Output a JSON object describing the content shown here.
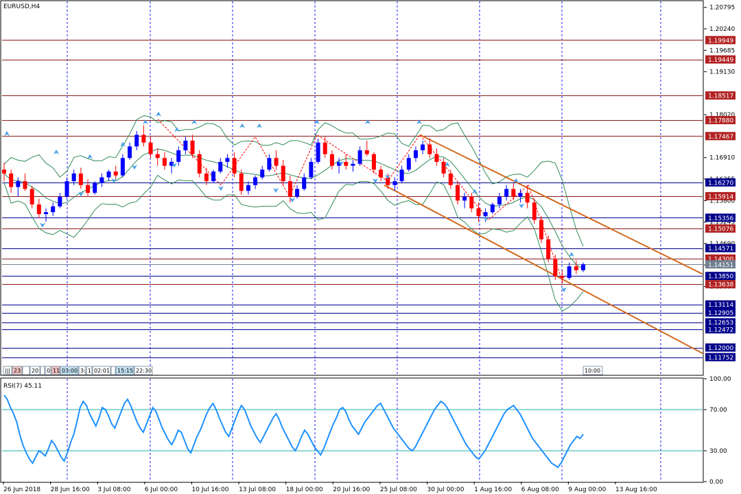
{
  "window": {
    "symbol_label": "EURUSD,H4"
  },
  "price_axis": {
    "ticks": [
      "1.20795",
      "1.20240",
      "1.19685",
      "1.19130",
      "1.18020",
      "1.16910",
      "1.16355",
      "1.15800",
      "1.15245",
      "1.14690",
      "1.14135",
      "1.13580"
    ],
    "range": [
      1.113,
      1.2095
    ]
  },
  "price_levels": [
    {
      "label": "1.19949",
      "value": 1.19949,
      "color": "#8b1a1a",
      "bg": "#b22222"
    },
    {
      "label": "1.19449",
      "value": 1.19449,
      "color": "#8b1a1a",
      "bg": "#b22222"
    },
    {
      "label": "1.18517",
      "value": 1.18517,
      "color": "#8b1a1a",
      "bg": "#b22222"
    },
    {
      "label": "1.17880",
      "value": 1.1788,
      "color": "#8b1a1a",
      "bg": "#b22222"
    },
    {
      "label": "1.17467",
      "value": 1.17467,
      "color": "#8b1a1a",
      "bg": "#b22222"
    },
    {
      "label": "1.16270",
      "value": 1.1627,
      "color": "#00008b",
      "bg": "#00008b"
    },
    {
      "label": "1.15914",
      "value": 1.15914,
      "color": "#8b1a1a",
      "bg": "#b22222"
    },
    {
      "label": "1.15356",
      "value": 1.15356,
      "color": "#00008b",
      "bg": "#00008b"
    },
    {
      "label": "1.15076",
      "value": 1.15076,
      "color": "#8b1a1a",
      "bg": "#b22222"
    },
    {
      "label": "1.14571",
      "value": 1.14571,
      "color": "#00008b",
      "bg": "#00008b"
    },
    {
      "label": "1.14300",
      "value": 1.143,
      "color": "#8b1a1a",
      "bg": "#b22222"
    },
    {
      "label": "1.14151",
      "value": 1.14151,
      "color": "#708090",
      "bg": "#708090"
    },
    {
      "label": "1.13850",
      "value": 1.1385,
      "color": "#00008b",
      "bg": "#00008b"
    },
    {
      "label": "1.13638",
      "value": 1.13638,
      "color": "#8b1a1a",
      "bg": "#b22222"
    },
    {
      "label": "1.13114",
      "value": 1.13114,
      "color": "#00008b",
      "bg": "#00008b"
    },
    {
      "label": "1.12905",
      "value": 1.12905,
      "color": "#00008b",
      "bg": "#00008b"
    },
    {
      "label": "1.12653",
      "value": 1.12653,
      "color": "#00008b",
      "bg": "#00008b"
    },
    {
      "label": "1.12472",
      "value": 1.12472,
      "color": "#00008b",
      "bg": "#00008b"
    },
    {
      "label": "1.12000",
      "value": 1.12,
      "color": "#00008b",
      "bg": "#00008b"
    },
    {
      "label": "1.11752",
      "value": 1.11752,
      "color": "#00008b",
      "bg": "#00008b"
    }
  ],
  "time_axis": {
    "labels": [
      "26 Jun 2018",
      "28 Jun 16:00",
      "3 Jul 08:00",
      "6 Jul 00:00",
      "10 Jul 16:00",
      "13 Jul 08:00",
      "18 Jul 00:00",
      "20 Jul 16:00",
      "25 Jul 08:00",
      "30 Jul 00:00",
      "1 Aug 16:00",
      "6 Aug 08:00",
      "9 Aug 00:00",
      "13 Aug 16:00"
    ]
  },
  "session_bar": {
    "items": [
      "|||",
      "23",
      "",
      "20",
      "",
      "0",
      "11",
      "03:00",
      "3:",
      "1",
      "02:01",
      "",
      "15:15",
      "22:30"
    ],
    "current_time": "10:00"
  },
  "rsi": {
    "label": "RSI(7) 45.11",
    "ticks": [
      "100.00",
      "70.00",
      "30.00",
      "0.00"
    ],
    "levels": [
      70,
      30
    ]
  },
  "chart_data": [
    {
      "type": "candlestick",
      "title": "EURUSD,H4",
      "ylim": [
        1.113,
        1.2095
      ],
      "ohlc": [
        [
          1.166,
          1.1678,
          1.163,
          1.165
        ],
        [
          1.165,
          1.166,
          1.16,
          1.1615
        ],
        [
          1.1615,
          1.164,
          1.159,
          1.163
        ],
        [
          1.163,
          1.165,
          1.1605,
          1.161
        ],
        [
          1.161,
          1.1618,
          1.156,
          1.157
        ],
        [
          1.157,
          1.1585,
          1.1535,
          1.1545
        ],
        [
          1.1545,
          1.156,
          1.1525,
          1.155
        ],
        [
          1.155,
          1.1575,
          1.154,
          1.1565
        ],
        [
          1.1565,
          1.16,
          1.156,
          1.159
        ],
        [
          1.159,
          1.164,
          1.1585,
          1.163
        ],
        [
          1.163,
          1.166,
          1.162,
          1.165
        ],
        [
          1.165,
          1.1665,
          1.161,
          1.162
        ],
        [
          1.162,
          1.1635,
          1.159,
          1.16
        ],
        [
          1.16,
          1.163,
          1.1595,
          1.1625
        ],
        [
          1.1625,
          1.165,
          1.1615,
          1.164
        ],
        [
          1.164,
          1.166,
          1.163,
          1.1655
        ],
        [
          1.1655,
          1.167,
          1.1635,
          1.1645
        ],
        [
          1.1645,
          1.17,
          1.164,
          1.169
        ],
        [
          1.169,
          1.173,
          1.1685,
          1.172
        ],
        [
          1.172,
          1.176,
          1.171,
          1.175
        ],
        [
          1.175,
          1.1775,
          1.172,
          1.173
        ],
        [
          1.173,
          1.1745,
          1.169,
          1.17
        ],
        [
          1.17,
          1.1715,
          1.167,
          1.169
        ],
        [
          1.169,
          1.1705,
          1.166,
          1.167
        ],
        [
          1.167,
          1.169,
          1.165,
          1.168
        ],
        [
          1.168,
          1.172,
          1.167,
          1.171
        ],
        [
          1.171,
          1.1745,
          1.17,
          1.1735
        ],
        [
          1.1735,
          1.175,
          1.169,
          1.17
        ],
        [
          1.17,
          1.171,
          1.164,
          1.165
        ],
        [
          1.165,
          1.1665,
          1.162,
          1.163
        ],
        [
          1.163,
          1.166,
          1.1625,
          1.1655
        ],
        [
          1.1655,
          1.169,
          1.165,
          1.168
        ],
        [
          1.168,
          1.17,
          1.1665,
          1.169
        ],
        [
          1.169,
          1.1705,
          1.164,
          1.165
        ],
        [
          1.165,
          1.166,
          1.1595,
          1.1605
        ],
        [
          1.1605,
          1.163,
          1.1595,
          1.162
        ],
        [
          1.162,
          1.1645,
          1.161,
          1.164
        ],
        [
          1.164,
          1.167,
          1.1635,
          1.166
        ],
        [
          1.166,
          1.17,
          1.1655,
          1.169
        ],
        [
          1.169,
          1.171,
          1.166,
          1.167
        ],
        [
          1.167,
          1.1685,
          1.162,
          1.163
        ],
        [
          1.163,
          1.1645,
          1.1575,
          1.159
        ],
        [
          1.159,
          1.162,
          1.1585,
          1.161
        ],
        [
          1.161,
          1.165,
          1.1605,
          1.164
        ],
        [
          1.164,
          1.169,
          1.1635,
          1.168
        ],
        [
          1.168,
          1.174,
          1.1675,
          1.173
        ],
        [
          1.173,
          1.1745,
          1.169,
          1.17
        ],
        [
          1.17,
          1.171,
          1.166,
          1.167
        ],
        [
          1.167,
          1.169,
          1.165,
          1.168
        ],
        [
          1.168,
          1.17,
          1.166,
          1.167
        ],
        [
          1.167,
          1.1685,
          1.1655,
          1.1675
        ],
        [
          1.1675,
          1.172,
          1.167,
          1.171
        ],
        [
          1.171,
          1.1735,
          1.1695,
          1.17
        ],
        [
          1.17,
          1.1705,
          1.165,
          1.166
        ],
        [
          1.166,
          1.167,
          1.163,
          1.164
        ],
        [
          1.164,
          1.165,
          1.161,
          1.162
        ],
        [
          1.162,
          1.164,
          1.1605,
          1.163
        ],
        [
          1.163,
          1.167,
          1.1625,
          1.166
        ],
        [
          1.166,
          1.17,
          1.1655,
          1.169
        ],
        [
          1.169,
          1.172,
          1.168,
          1.171
        ],
        [
          1.171,
          1.1735,
          1.17,
          1.1725
        ],
        [
          1.1725,
          1.174,
          1.169,
          1.17
        ],
        [
          1.17,
          1.1715,
          1.167,
          1.168
        ],
        [
          1.168,
          1.169,
          1.164,
          1.165
        ],
        [
          1.165,
          1.166,
          1.161,
          1.162
        ],
        [
          1.162,
          1.163,
          1.157,
          1.158
        ],
        [
          1.158,
          1.16,
          1.156,
          1.159
        ],
        [
          1.159,
          1.16,
          1.155,
          1.156
        ],
        [
          1.156,
          1.1575,
          1.1525,
          1.154
        ],
        [
          1.154,
          1.156,
          1.1525,
          1.155
        ],
        [
          1.155,
          1.1575,
          1.1545,
          1.157
        ],
        [
          1.157,
          1.16,
          1.156,
          1.159
        ],
        [
          1.159,
          1.162,
          1.158,
          1.161
        ],
        [
          1.161,
          1.1625,
          1.158,
          1.159
        ],
        [
          1.159,
          1.161,
          1.1575,
          1.16
        ],
        [
          1.16,
          1.162,
          1.156,
          1.1575
        ],
        [
          1.1575,
          1.1585,
          1.152,
          1.153
        ],
        [
          1.153,
          1.154,
          1.147,
          1.148
        ],
        [
          1.148,
          1.149,
          1.142,
          1.143
        ],
        [
          1.143,
          1.144,
          1.1375,
          1.1385
        ],
        [
          1.1385,
          1.14,
          1.1365,
          1.138
        ],
        [
          1.138,
          1.142,
          1.1375,
          1.141
        ],
        [
          1.141,
          1.1425,
          1.139,
          1.14
        ],
        [
          1.14,
          1.142,
          1.1395,
          1.1415
        ]
      ],
      "rsi_values": [
        84,
        80,
        72,
        66,
        58,
        45,
        35,
        28,
        22,
        18,
        24,
        30,
        28,
        25,
        32,
        40,
        36,
        30,
        24,
        20,
        28,
        38,
        46,
        58,
        72,
        78,
        74,
        66,
        60,
        54,
        62,
        72,
        70,
        64,
        56,
        52,
        60,
        68,
        76,
        80,
        74,
        66,
        58,
        52,
        48,
        56,
        64,
        72,
        68,
        60,
        52,
        46,
        40,
        36,
        42,
        50,
        48,
        40,
        32,
        28,
        36,
        44,
        50,
        58,
        66,
        72,
        76,
        70,
        62,
        55,
        48,
        44,
        52,
        60,
        68,
        74,
        70,
        62,
        54,
        48,
        42,
        38,
        44,
        50,
        56,
        62,
        66,
        60,
        52,
        46,
        40,
        34,
        30,
        36,
        44,
        50,
        46,
        40,
        34,
        30,
        26,
        32,
        40,
        48,
        56,
        62,
        70,
        72,
        68,
        60,
        54,
        50,
        46,
        52,
        58,
        62,
        66,
        70,
        74,
        76,
        70,
        64,
        58,
        52,
        48,
        44,
        40,
        36,
        32,
        30,
        34,
        40,
        46,
        52,
        58,
        64,
        70,
        74,
        78,
        76,
        72,
        66,
        60,
        54,
        48,
        42,
        36,
        32,
        28,
        24,
        22,
        26,
        30,
        36,
        42,
        48,
        54,
        60,
        66,
        70,
        72,
        74,
        70,
        66,
        60,
        54,
        48,
        42,
        38,
        34,
        30,
        26,
        22,
        18,
        16,
        14,
        18,
        24,
        30,
        36,
        40,
        44,
        42,
        46
      ]
    },
    {
      "type": "line",
      "title": "RSI(7) 45.11",
      "ylim": [
        0,
        100
      ],
      "levels": [
        70,
        30
      ]
    }
  ]
}
